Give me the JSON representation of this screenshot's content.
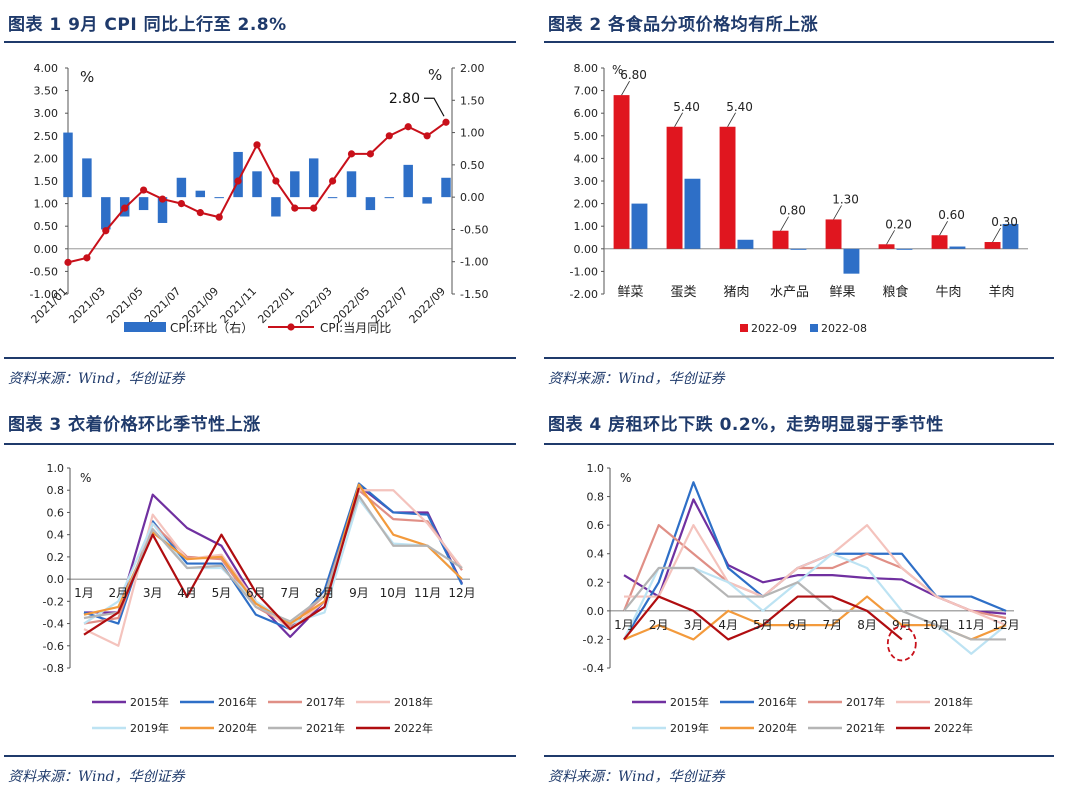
{
  "source_text": "资料来源：Wind，华创证券",
  "chart_data": [
    {
      "id": "fig1",
      "type": "bar+line",
      "title": "图表  1    9月 CPI 同比上行至 2.8%",
      "left_unit": "%",
      "right_unit": "%",
      "left_ylim": [
        -1.0,
        4.0
      ],
      "right_ylim": [
        -1.5,
        2.0
      ],
      "left_ticks": [
        "4.00",
        "3.50",
        "3.00",
        "2.50",
        "2.00",
        "1.50",
        "1.00",
        "0.50",
        "0.00",
        "-0.50",
        "-1.00"
      ],
      "right_ticks": [
        "2.00",
        "1.50",
        "1.00",
        "0.50",
        "0.00",
        "-0.50",
        "-1.00",
        "-1.50"
      ],
      "x_tick_labels": [
        "2021/01",
        "2021/03",
        "2021/05",
        "2021/07",
        "2021/09",
        "2021/11",
        "2022/01",
        "2022/03",
        "2022/05",
        "2022/07",
        "2022/09"
      ],
      "months": [
        "2021/01",
        "2021/02",
        "2021/03",
        "2021/04",
        "2021/05",
        "2021/06",
        "2021/07",
        "2021/08",
        "2021/09",
        "2021/10",
        "2021/11",
        "2021/12",
        "2022/01",
        "2022/02",
        "2022/03",
        "2022/04",
        "2022/05",
        "2022/06",
        "2022/07",
        "2022/08",
        "2022/09"
      ],
      "series": [
        {
          "name": "CPI:环比（右）",
          "axis": "right",
          "kind": "bar",
          "color": "#2e6fc7",
          "values": [
            1.0,
            0.6,
            -0.5,
            -0.3,
            -0.2,
            -0.4,
            0.3,
            0.1,
            0.0,
            0.7,
            0.4,
            -0.3,
            0.4,
            0.6,
            0.0,
            0.4,
            -0.2,
            0.0,
            0.5,
            -0.1,
            0.3
          ]
        },
        {
          "name": "CPI:当月同比",
          "axis": "left",
          "kind": "line",
          "color": "#c8101a",
          "values": [
            -0.3,
            -0.2,
            0.4,
            0.9,
            1.3,
            1.1,
            1.0,
            0.8,
            0.7,
            1.5,
            2.3,
            1.5,
            0.9,
            0.9,
            1.5,
            2.1,
            2.1,
            2.5,
            2.7,
            2.5,
            2.8
          ]
        }
      ],
      "annotation": {
        "text": "2.80",
        "month": "2022/09"
      }
    },
    {
      "id": "fig2",
      "type": "bar",
      "title": "图表  2    各食品分项价格均有所上涨",
      "unit": "%",
      "ylim": [
        -2.0,
        8.0
      ],
      "y_ticks": [
        "8.00",
        "7.00",
        "6.00",
        "5.00",
        "4.00",
        "3.00",
        "2.00",
        "1.00",
        "0.00",
        "-1.00",
        "-2.00"
      ],
      "categories": [
        "鲜菜",
        "蛋类",
        "猪肉",
        "水产品",
        "鲜果",
        "粮食",
        "牛肉",
        "羊肉"
      ],
      "series": [
        {
          "name": "2022-09",
          "color": "#e0161f",
          "values": [
            6.8,
            5.4,
            5.4,
            0.8,
            1.3,
            0.2,
            0.6,
            0.3
          ],
          "labels": [
            "6.80",
            "5.40",
            "5.40",
            "0.80",
            "1.30",
            "0.20",
            "0.60",
            "0.30"
          ]
        },
        {
          "name": "2022-08",
          "color": "#2e6fc7",
          "values": [
            2.0,
            3.1,
            0.4,
            0.0,
            -1.1,
            0.0,
            0.1,
            1.1
          ]
        }
      ]
    },
    {
      "id": "fig3",
      "type": "line",
      "title": "图表  3    衣着价格环比季节性上涨",
      "unit": "%",
      "ylim": [
        -0.8,
        1.0
      ],
      "y_ticks": [
        "1.0",
        "0.8",
        "0.6",
        "0.4",
        "0.2",
        "0.0",
        "-0.2",
        "-0.4",
        "-0.6",
        "-0.8"
      ],
      "categories": [
        "1月",
        "2月",
        "3月",
        "4月",
        "5月",
        "6月",
        "7月",
        "8月",
        "9月",
        "10月",
        "11月",
        "12月"
      ],
      "series": [
        {
          "name": "2015年",
          "color": "#7030a0",
          "values": [
            -0.3,
            -0.3,
            0.76,
            0.46,
            0.3,
            -0.2,
            -0.52,
            -0.2,
            0.84,
            0.6,
            0.6,
            -0.04
          ]
        },
        {
          "name": "2016年",
          "color": "#2e6fc7",
          "values": [
            -0.3,
            -0.4,
            0.52,
            0.14,
            0.14,
            -0.32,
            -0.45,
            -0.1,
            0.86,
            0.6,
            0.58,
            -0.05
          ]
        },
        {
          "name": "2017年",
          "color": "#e08f86",
          "values": [
            -0.4,
            -0.35,
            0.5,
            0.2,
            0.18,
            -0.25,
            -0.42,
            -0.15,
            0.8,
            0.54,
            0.52,
            0.08
          ]
        },
        {
          "name": "2018年",
          "color": "#f4c3bd",
          "values": [
            -0.45,
            -0.6,
            0.58,
            0.18,
            0.22,
            -0.2,
            -0.45,
            -0.2,
            0.8,
            0.8,
            0.5,
            0.1
          ]
        },
        {
          "name": "2019年",
          "color": "#bde3f3",
          "values": [
            -0.4,
            -0.2,
            0.5,
            0.1,
            0.1,
            -0.2,
            -0.4,
            -0.3,
            0.72,
            0.32,
            0.3,
            0.0
          ]
        },
        {
          "name": "2020年",
          "color": "#f39a3c",
          "values": [
            -0.32,
            -0.25,
            0.42,
            0.18,
            0.2,
            -0.22,
            -0.4,
            -0.2,
            0.85,
            0.4,
            0.3,
            0.0
          ]
        },
        {
          "name": "2021年",
          "color": "#b5b5b5",
          "values": [
            -0.35,
            -0.3,
            0.45,
            0.1,
            0.12,
            -0.25,
            -0.38,
            -0.15,
            0.75,
            0.3,
            0.3,
            0.1
          ]
        },
        {
          "name": "2022年",
          "color": "#b00d10",
          "values": [
            -0.5,
            -0.3,
            0.4,
            -0.16,
            0.4,
            -0.12,
            -0.45,
            -0.25,
            0.82,
            null,
            null,
            null
          ]
        }
      ]
    },
    {
      "id": "fig4",
      "type": "line",
      "title": "图表  4    房租环比下跌 0.2%，走势明显弱于季节性",
      "unit": "%",
      "ylim": [
        -0.4,
        1.0
      ],
      "y_ticks": [
        "1.0",
        "0.8",
        "0.6",
        "0.4",
        "0.2",
        "0.0",
        "-0.2",
        "-0.4"
      ],
      "categories": [
        "1月",
        "2月",
        "3月",
        "4月",
        "5月",
        "6月",
        "7月",
        "8月",
        "9月",
        "10月",
        "11月",
        "12月"
      ],
      "series": [
        {
          "name": "2015年",
          "color": "#7030a0",
          "values": [
            0.25,
            0.1,
            0.78,
            0.32,
            0.2,
            0.25,
            0.25,
            0.23,
            0.22,
            0.1,
            0.0,
            -0.02
          ]
        },
        {
          "name": "2016年",
          "color": "#2e6fc7",
          "values": [
            -0.2,
            0.2,
            0.9,
            0.3,
            0.1,
            0.3,
            0.4,
            0.4,
            0.4,
            0.1,
            0.1,
            0.0
          ]
        },
        {
          "name": "2017年",
          "color": "#e08f86",
          "values": [
            0.0,
            0.6,
            0.4,
            0.2,
            0.1,
            0.3,
            0.3,
            0.4,
            0.3,
            0.1,
            0.0,
            -0.05
          ]
        },
        {
          "name": "2018年",
          "color": "#f4c3bd",
          "values": [
            0.1,
            0.1,
            0.6,
            0.2,
            0.1,
            0.3,
            0.4,
            0.6,
            0.3,
            0.1,
            0.0,
            -0.1
          ]
        },
        {
          "name": "2019年",
          "color": "#bde3f3",
          "values": [
            -0.2,
            0.3,
            0.3,
            0.2,
            0.0,
            0.2,
            0.4,
            0.3,
            0.0,
            -0.1,
            -0.3,
            -0.1
          ]
        },
        {
          "name": "2020年",
          "color": "#f39a3c",
          "values": [
            -0.2,
            -0.1,
            -0.2,
            0.0,
            -0.1,
            -0.1,
            -0.1,
            0.1,
            -0.1,
            -0.1,
            -0.2,
            -0.1
          ]
        },
        {
          "name": "2021年",
          "color": "#b5b5b5",
          "values": [
            0.0,
            0.3,
            0.3,
            0.1,
            0.1,
            0.2,
            0.0,
            0.0,
            0.0,
            -0.1,
            -0.2,
            -0.2
          ]
        },
        {
          "name": "2022年",
          "color": "#b00d10",
          "values": [
            -0.2,
            0.1,
            0.0,
            -0.2,
            -0.1,
            0.1,
            0.1,
            0.0,
            -0.2,
            null,
            null,
            null
          ]
        }
      ],
      "highlight_month": "9月"
    }
  ]
}
